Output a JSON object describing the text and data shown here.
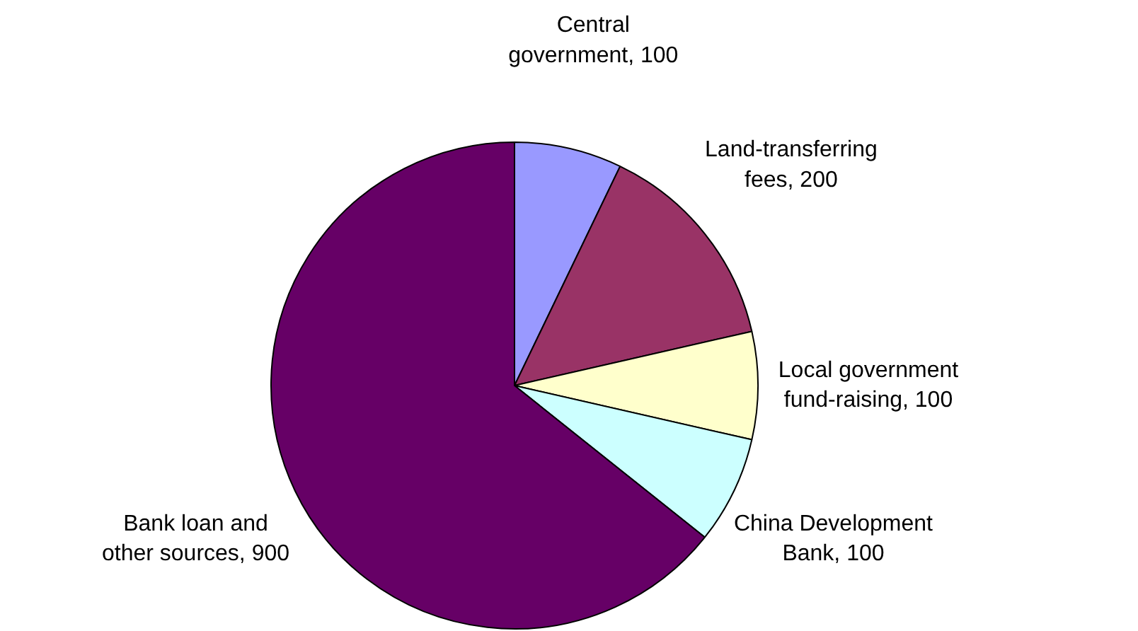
{
  "chart_data": {
    "type": "pie",
    "categories": [
      "Central government, 100",
      "Land-transferring fees, 200",
      "Local government fund-raising, 100",
      "China Development Bank, 100",
      "Bank loan and other sources, 900"
    ],
    "values": [
      100,
      200,
      100,
      100,
      900
    ],
    "colors": [
      "#9999ff",
      "#993366",
      "#ffffcc",
      "#ccffff",
      "#660066"
    ]
  }
}
